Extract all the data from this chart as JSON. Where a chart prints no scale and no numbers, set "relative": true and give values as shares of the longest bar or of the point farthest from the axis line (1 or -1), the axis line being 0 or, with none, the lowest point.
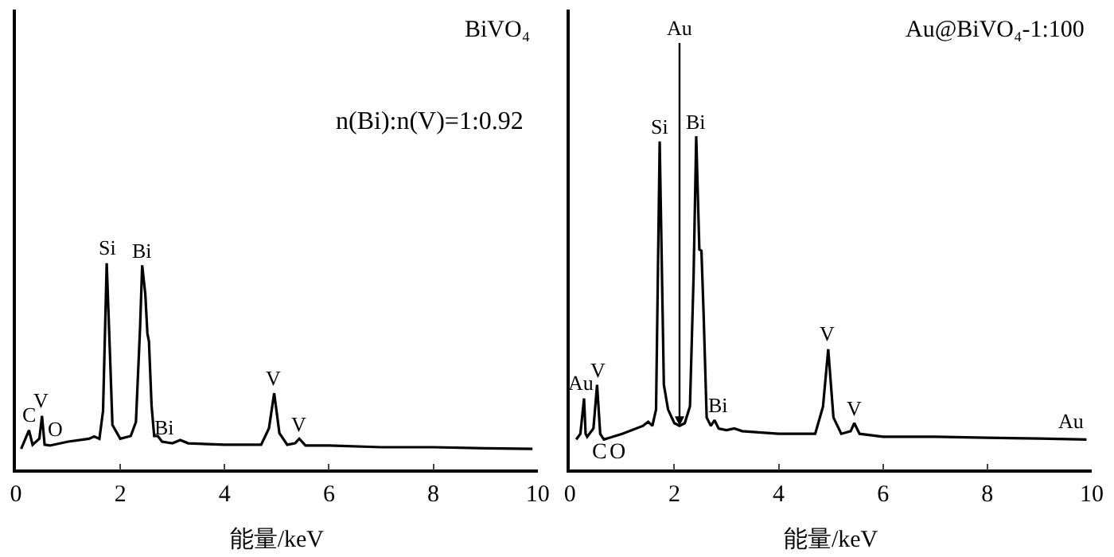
{
  "chart_data": [
    {
      "type": "line",
      "title": "BiVO₄",
      "xlabel": "能量/keV",
      "relative": true,
      "tick_labels": "x",
      "color": "#000000",
      "xlim": [
        0,
        10
      ],
      "xticks": [
        0,
        2,
        4,
        6,
        8,
        10
      ],
      "x": [
        0.1,
        0.25,
        0.32,
        0.45,
        0.5,
        0.55,
        0.65,
        1.0,
        1.4,
        1.5,
        1.6,
        1.67,
        1.74,
        1.8,
        1.85,
        2.0,
        2.2,
        2.3,
        2.38,
        2.42,
        2.48,
        2.52,
        2.55,
        2.6,
        2.65,
        2.72,
        2.8,
        3.0,
        3.15,
        3.3,
        4.0,
        4.7,
        4.85,
        4.95,
        5.05,
        5.2,
        5.35,
        5.43,
        5.55,
        6.0,
        7.0,
        8.0,
        9.0,
        9.9
      ],
      "values": [
        0.1,
        0.19,
        0.12,
        0.15,
        0.26,
        0.12,
        0.116,
        0.135,
        0.149,
        0.16,
        0.149,
        0.284,
        1.0,
        0.58,
        0.216,
        0.149,
        0.162,
        0.23,
        0.689,
        0.99,
        0.85,
        0.66,
        0.62,
        0.31,
        0.162,
        0.162,
        0.135,
        0.127,
        0.143,
        0.127,
        0.12,
        0.12,
        0.2,
        0.37,
        0.176,
        0.12,
        0.127,
        0.149,
        0.116,
        0.116,
        0.108,
        0.108,
        0.103,
        0.1
      ],
      "annotations": [
        {
          "text": "C",
          "x": 0.27,
          "y": 0.19
        },
        {
          "text": "V",
          "x": 0.5,
          "y": 0.26
        },
        {
          "text": "O",
          "x": 0.75,
          "y": 0.12
        },
        {
          "text": "Si",
          "x": 1.74,
          "y": 1.0
        },
        {
          "text": "Bi",
          "x": 2.42,
          "y": 0.99
        },
        {
          "text": "Bi",
          "x": 2.85,
          "y": 0.13
        },
        {
          "text": "V",
          "x": 4.95,
          "y": 0.37
        },
        {
          "text": "V",
          "x": 5.43,
          "y": 0.149
        },
        "n(Bi):n(V)=1:0.92"
      ]
    },
    {
      "type": "line",
      "title": "Au@BiVO₄-1:100",
      "xlabel": "能量/keV",
      "relative": true,
      "tick_labels": "x",
      "color": "#000000",
      "xlim": [
        0,
        10
      ],
      "xticks": [
        0,
        2,
        4,
        6,
        8,
        10
      ],
      "x": [
        0.12,
        0.2,
        0.27,
        0.3,
        0.33,
        0.45,
        0.52,
        0.58,
        0.65,
        1.0,
        1.4,
        1.5,
        1.58,
        1.65,
        1.72,
        1.8,
        1.88,
        2.0,
        2.1,
        2.2,
        2.3,
        2.37,
        2.42,
        2.48,
        2.52,
        2.56,
        2.62,
        2.7,
        2.77,
        2.85,
        3.0,
        3.15,
        3.3,
        4.0,
        4.7,
        4.85,
        4.95,
        5.05,
        5.2,
        5.38,
        5.45,
        5.55,
        6.0,
        7.0,
        8.0,
        9.0,
        9.9
      ],
      "values": [
        0.09,
        0.107,
        0.213,
        0.107,
        0.098,
        0.123,
        0.254,
        0.107,
        0.09,
        0.107,
        0.131,
        0.143,
        0.131,
        0.18,
        0.984,
        0.254,
        0.18,
        0.139,
        0.131,
        0.139,
        0.189,
        0.582,
        1.0,
        0.66,
        0.656,
        0.475,
        0.156,
        0.131,
        0.148,
        0.123,
        0.118,
        0.123,
        0.115,
        0.107,
        0.107,
        0.189,
        0.361,
        0.156,
        0.107,
        0.115,
        0.139,
        0.107,
        0.098,
        0.098,
        0.095,
        0.093,
        0.09
      ],
      "annotations": [
        {
          "text": "Au",
          "x": 0.22,
          "y": 0.213
        },
        {
          "text": "V",
          "x": 0.55,
          "y": 0.254
        },
        "C",
        "O",
        {
          "text": "Si",
          "x": 1.72,
          "y": 0.984
        },
        {
          "text": "Au",
          "x": 2.1,
          "y": 0.131
        },
        {
          "text": "Bi",
          "x": 2.42,
          "y": 1.0
        },
        {
          "text": "Bi",
          "x": 2.85,
          "y": 0.148
        },
        {
          "text": "V",
          "x": 4.95,
          "y": 0.361
        },
        {
          "text": "V",
          "x": 5.45,
          "y": 0.139
        },
        {
          "text": "Au",
          "x": 9.6,
          "y": 0.098
        }
      ]
    }
  ]
}
